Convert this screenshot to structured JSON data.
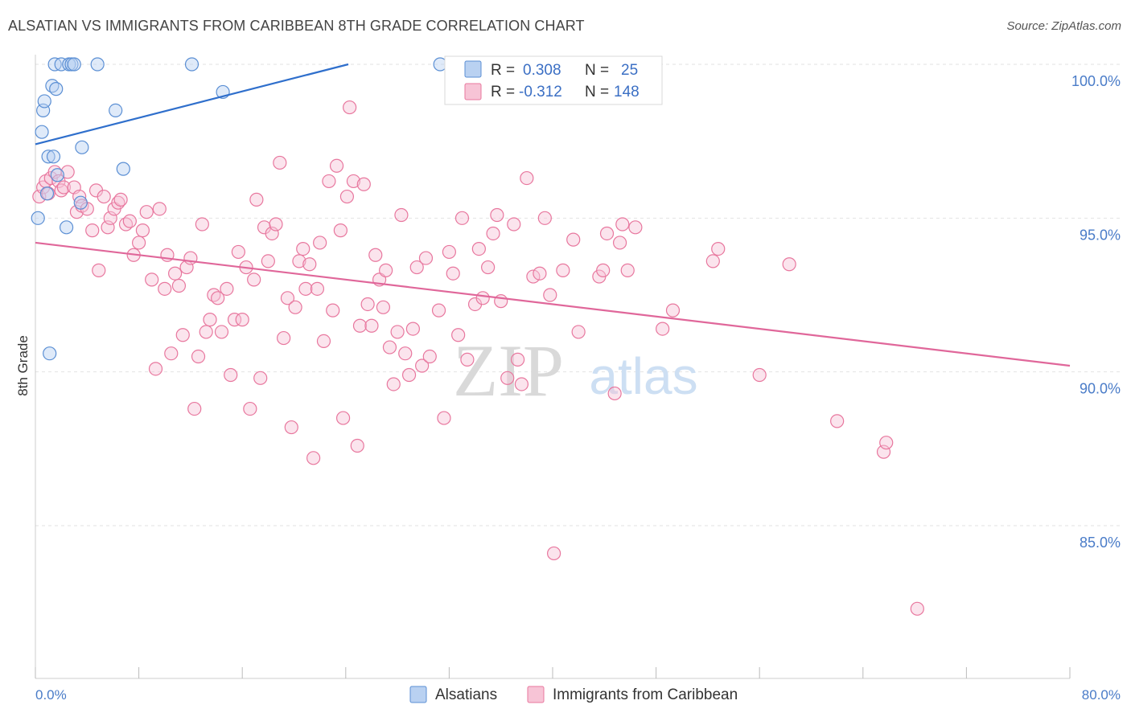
{
  "title": "ALSATIAN VS IMMIGRANTS FROM CARIBBEAN 8TH GRADE CORRELATION CHART",
  "source": "Source: ZipAtlas.com",
  "colors": {
    "alsatians": "#5b8fd4",
    "alsatians_fill": "#b9d1f1",
    "caribbean": "#e8779e",
    "caribbean_fill": "#f7c4d6",
    "axis_text": "#4a7cc8",
    "grid": "#dddddd"
  },
  "chart_data": {
    "type": "scatter",
    "title": "ALSATIAN VS IMMIGRANTS FROM CARIBBEAN 8TH GRADE CORRELATION CHART",
    "xlabel": "",
    "ylabel": "8th Grade",
    "xlim": [
      0,
      80
    ],
    "ylim": [
      80.7,
      100.5
    ],
    "x_tick_labels": [
      "0.0%",
      "80.0%"
    ],
    "y_ticks": [
      85,
      90,
      95,
      100
    ],
    "y_tick_labels": [
      "85.0%",
      "90.0%",
      "95.0%",
      "100.0%"
    ],
    "legend_position": "top-center",
    "watermark": {
      "zip": "ZIP",
      "atlas": "atlas"
    },
    "stats": [
      {
        "r_label": "R =",
        "r": "0.308",
        "n_label": "N =",
        "n": "25"
      },
      {
        "r_label": "R =",
        "r": "-0.312",
        "n_label": "N =",
        "n": "148"
      }
    ],
    "series": [
      {
        "name": "Alsatians",
        "trend": {
          "x0": 0,
          "y0": 97.4,
          "x1": 24.2,
          "y1": 100.0
        },
        "points": [
          [
            0.2,
            95.0
          ],
          [
            0.5,
            97.8
          ],
          [
            0.6,
            98.5
          ],
          [
            0.7,
            98.8
          ],
          [
            0.9,
            95.8
          ],
          [
            1.0,
            97.0
          ],
          [
            1.1,
            90.6
          ],
          [
            1.3,
            99.3
          ],
          [
            1.4,
            97.0
          ],
          [
            1.5,
            100.0
          ],
          [
            1.6,
            99.2
          ],
          [
            1.7,
            96.4
          ],
          [
            2.0,
            100.0
          ],
          [
            2.4,
            94.7
          ],
          [
            2.6,
            100.0
          ],
          [
            2.8,
            100.0
          ],
          [
            3.0,
            100.0
          ],
          [
            3.6,
            97.3
          ],
          [
            3.5,
            95.5
          ],
          [
            4.8,
            100.0
          ],
          [
            6.2,
            98.5
          ],
          [
            6.8,
            96.6
          ],
          [
            12.1,
            100.0
          ],
          [
            14.5,
            99.1
          ],
          [
            31.3,
            100.0
          ]
        ]
      },
      {
        "name": "Immigrants from Caribbean",
        "trend": {
          "x0": 0,
          "y0": 94.2,
          "x1": 80,
          "y1": 90.2
        },
        "points": [
          [
            0.3,
            95.7
          ],
          [
            0.6,
            96.0
          ],
          [
            0.8,
            96.2
          ],
          [
            1.0,
            95.8
          ],
          [
            1.2,
            96.3
          ],
          [
            1.5,
            96.5
          ],
          [
            1.8,
            96.2
          ],
          [
            2.0,
            95.9
          ],
          [
            2.2,
            96.0
          ],
          [
            2.5,
            96.5
          ],
          [
            3.0,
            96.0
          ],
          [
            3.2,
            95.2
          ],
          [
            3.4,
            95.7
          ],
          [
            3.6,
            95.4
          ],
          [
            4.0,
            95.3
          ],
          [
            4.4,
            94.6
          ],
          [
            4.7,
            95.9
          ],
          [
            4.9,
            93.3
          ],
          [
            5.3,
            95.7
          ],
          [
            5.6,
            94.7
          ],
          [
            5.8,
            95.0
          ],
          [
            6.1,
            95.3
          ],
          [
            6.4,
            95.5
          ],
          [
            6.6,
            95.6
          ],
          [
            7.0,
            94.8
          ],
          [
            7.3,
            94.9
          ],
          [
            7.6,
            93.8
          ],
          [
            8.0,
            94.2
          ],
          [
            8.3,
            94.6
          ],
          [
            8.6,
            95.2
          ],
          [
            9.0,
            93.0
          ],
          [
            9.3,
            90.1
          ],
          [
            9.6,
            95.3
          ],
          [
            10.0,
            92.7
          ],
          [
            10.2,
            93.8
          ],
          [
            10.5,
            90.6
          ],
          [
            10.8,
            93.2
          ],
          [
            11.1,
            92.8
          ],
          [
            11.4,
            91.2
          ],
          [
            11.7,
            93.4
          ],
          [
            12.0,
            93.7
          ],
          [
            12.3,
            88.8
          ],
          [
            12.6,
            90.5
          ],
          [
            12.9,
            94.8
          ],
          [
            13.2,
            91.3
          ],
          [
            13.5,
            91.7
          ],
          [
            13.8,
            92.5
          ],
          [
            14.1,
            92.4
          ],
          [
            14.4,
            91.3
          ],
          [
            14.8,
            92.7
          ],
          [
            15.1,
            89.9
          ],
          [
            15.4,
            91.7
          ],
          [
            15.7,
            93.9
          ],
          [
            16.0,
            91.7
          ],
          [
            16.3,
            93.4
          ],
          [
            16.6,
            88.8
          ],
          [
            16.9,
            93.0
          ],
          [
            17.1,
            95.6
          ],
          [
            17.4,
            89.8
          ],
          [
            17.7,
            94.7
          ],
          [
            18.0,
            93.6
          ],
          [
            18.3,
            94.5
          ],
          [
            18.6,
            94.8
          ],
          [
            18.9,
            96.8
          ],
          [
            19.2,
            91.1
          ],
          [
            19.5,
            92.4
          ],
          [
            19.8,
            88.2
          ],
          [
            20.1,
            92.1
          ],
          [
            20.4,
            93.6
          ],
          [
            20.7,
            94.0
          ],
          [
            20.9,
            92.7
          ],
          [
            21.2,
            93.5
          ],
          [
            21.5,
            87.2
          ],
          [
            21.8,
            92.7
          ],
          [
            22.0,
            94.2
          ],
          [
            22.3,
            91.0
          ],
          [
            22.7,
            96.2
          ],
          [
            23.0,
            92.0
          ],
          [
            23.3,
            96.7
          ],
          [
            23.6,
            94.6
          ],
          [
            23.8,
            88.5
          ],
          [
            24.1,
            95.7
          ],
          [
            24.3,
            98.6
          ],
          [
            24.6,
            96.2
          ],
          [
            24.9,
            87.6
          ],
          [
            25.1,
            91.5
          ],
          [
            25.4,
            96.1
          ],
          [
            25.7,
            92.2
          ],
          [
            26.0,
            91.5
          ],
          [
            26.3,
            93.8
          ],
          [
            26.6,
            93.0
          ],
          [
            26.9,
            92.1
          ],
          [
            27.1,
            93.3
          ],
          [
            27.4,
            90.8
          ],
          [
            27.7,
            89.6
          ],
          [
            28.0,
            91.3
          ],
          [
            28.3,
            95.1
          ],
          [
            28.6,
            90.6
          ],
          [
            28.9,
            89.9
          ],
          [
            29.2,
            91.4
          ],
          [
            29.5,
            93.4
          ],
          [
            29.9,
            90.2
          ],
          [
            30.2,
            93.7
          ],
          [
            30.5,
            90.5
          ],
          [
            31.2,
            92.0
          ],
          [
            31.6,
            88.5
          ],
          [
            32.0,
            93.9
          ],
          [
            32.3,
            93.2
          ],
          [
            32.7,
            91.2
          ],
          [
            33.0,
            95.0
          ],
          [
            33.4,
            90.4
          ],
          [
            34.0,
            92.2
          ],
          [
            34.3,
            94.0
          ],
          [
            34.6,
            92.4
          ],
          [
            35.0,
            93.4
          ],
          [
            35.4,
            94.5
          ],
          [
            35.7,
            95.1
          ],
          [
            36.0,
            92.3
          ],
          [
            36.5,
            89.8
          ],
          [
            37.0,
            94.8
          ],
          [
            37.3,
            90.4
          ],
          [
            37.6,
            89.6
          ],
          [
            38.0,
            96.3
          ],
          [
            38.5,
            93.1
          ],
          [
            39.0,
            93.2
          ],
          [
            39.4,
            95.0
          ],
          [
            39.8,
            92.5
          ],
          [
            40.1,
            84.1
          ],
          [
            40.8,
            93.3
          ],
          [
            41.6,
            94.3
          ],
          [
            42.0,
            91.3
          ],
          [
            43.6,
            93.1
          ],
          [
            43.9,
            93.3
          ],
          [
            44.2,
            94.5
          ],
          [
            44.8,
            89.3
          ],
          [
            45.2,
            94.2
          ],
          [
            45.4,
            94.8
          ],
          [
            45.8,
            93.3
          ],
          [
            46.4,
            94.7
          ],
          [
            48.5,
            91.4
          ],
          [
            49.3,
            92.0
          ],
          [
            52.4,
            93.6
          ],
          [
            52.8,
            94.0
          ],
          [
            56.0,
            89.9
          ],
          [
            58.3,
            93.5
          ],
          [
            62.0,
            88.4
          ],
          [
            65.6,
            87.4
          ],
          [
            65.8,
            87.7
          ],
          [
            68.2,
            82.3
          ]
        ]
      }
    ]
  },
  "legend": {
    "items": [
      {
        "label": "Alsatians"
      },
      {
        "label": "Immigrants from Caribbean"
      }
    ]
  }
}
